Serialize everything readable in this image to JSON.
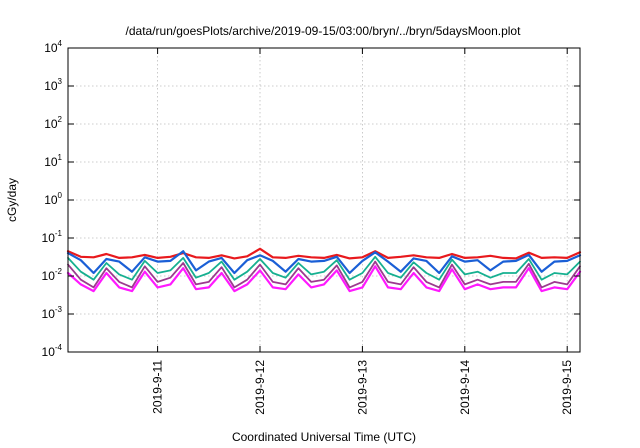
{
  "chart_data": {
    "type": "line",
    "title": "/data/run/goesPlots/archive/2019-09-15/03:00/bryn/../bryn/5daysMoon.plot",
    "xlabel": "Coordinated Universal Time (UTC)",
    "ylabel": "cGy/day",
    "yscale": "log",
    "ylim": [
      0.0001,
      10000
    ],
    "yticks": [
      {
        "base": "10",
        "exp": "4",
        "value": 10000
      },
      {
        "base": "10",
        "exp": "3",
        "value": 1000
      },
      {
        "base": "10",
        "exp": "2",
        "value": 100
      },
      {
        "base": "10",
        "exp": "1",
        "value": 10
      },
      {
        "base": "10",
        "exp": "0",
        "value": 1
      },
      {
        "base": "10",
        "exp": "-1",
        "value": 0.1
      },
      {
        "base": "10",
        "exp": "-2",
        "value": 0.01
      },
      {
        "base": "10",
        "exp": "-3",
        "value": 0.001
      },
      {
        "base": "10",
        "exp": "-4",
        "value": 0.0001
      }
    ],
    "xlim": [
      "2019-09-10T03:00",
      "2019-09-15T03:00"
    ],
    "xticks": [
      {
        "label": "2019-9-11",
        "value": "2019-09-11T00:00"
      },
      {
        "label": "2019-9-12",
        "value": "2019-09-12T00:00"
      },
      {
        "label": "2019-9-13",
        "value": "2019-09-13T00:00"
      },
      {
        "label": "2019-9-14",
        "value": "2019-09-14T00:00"
      },
      {
        "label": "2019-9-15",
        "value": "2019-09-15T00:00"
      }
    ],
    "grid": true,
    "legend": "none",
    "x": [
      "2019-09-10T03:00",
      "2019-09-10T06:00",
      "2019-09-10T09:00",
      "2019-09-10T12:00",
      "2019-09-10T15:00",
      "2019-09-10T18:00",
      "2019-09-10T21:00",
      "2019-09-11T00:00",
      "2019-09-11T03:00",
      "2019-09-11T06:00",
      "2019-09-11T09:00",
      "2019-09-11T12:00",
      "2019-09-11T15:00",
      "2019-09-11T18:00",
      "2019-09-11T21:00",
      "2019-09-12T00:00",
      "2019-09-12T03:00",
      "2019-09-12T06:00",
      "2019-09-12T09:00",
      "2019-09-12T12:00",
      "2019-09-12T15:00",
      "2019-09-12T18:00",
      "2019-09-12T21:00",
      "2019-09-13T00:00",
      "2019-09-13T03:00",
      "2019-09-13T06:00",
      "2019-09-13T09:00",
      "2019-09-13T12:00",
      "2019-09-13T15:00",
      "2019-09-13T18:00",
      "2019-09-13T21:00",
      "2019-09-14T00:00",
      "2019-09-14T03:00",
      "2019-09-14T06:00",
      "2019-09-14T09:00",
      "2019-09-14T12:00",
      "2019-09-14T15:00",
      "2019-09-14T18:00",
      "2019-09-14T21:00",
      "2019-09-15T00:00",
      "2019-09-15T03:00"
    ],
    "series": [
      {
        "color": "#e8191d",
        "width": 2.2,
        "values": [
          0.045,
          0.032,
          0.031,
          0.038,
          0.03,
          0.031,
          0.036,
          0.03,
          0.032,
          0.04,
          0.031,
          0.03,
          0.035,
          0.029,
          0.033,
          0.052,
          0.031,
          0.03,
          0.034,
          0.031,
          0.03,
          0.036,
          0.029,
          0.031,
          0.045,
          0.03,
          0.032,
          0.035,
          0.031,
          0.03,
          0.038,
          0.03,
          0.031,
          0.034,
          0.03,
          0.029,
          0.041,
          0.03,
          0.031,
          0.03,
          0.042
        ]
      },
      {
        "color": "#1a5fd6",
        "width": 2.2,
        "values": [
          0.04,
          0.026,
          0.012,
          0.028,
          0.024,
          0.013,
          0.031,
          0.024,
          0.025,
          0.045,
          0.014,
          0.024,
          0.03,
          0.012,
          0.026,
          0.035,
          0.025,
          0.013,
          0.028,
          0.024,
          0.025,
          0.032,
          0.012,
          0.025,
          0.042,
          0.024,
          0.013,
          0.029,
          0.025,
          0.012,
          0.033,
          0.024,
          0.026,
          0.014,
          0.024,
          0.025,
          0.036,
          0.013,
          0.024,
          0.025,
          0.035
        ]
      },
      {
        "color": "#16b090",
        "width": 1.8,
        "values": [
          0.03,
          0.013,
          0.008,
          0.022,
          0.011,
          0.008,
          0.025,
          0.012,
          0.014,
          0.03,
          0.009,
          0.012,
          0.024,
          0.008,
          0.013,
          0.028,
          0.012,
          0.009,
          0.022,
          0.011,
          0.013,
          0.026,
          0.008,
          0.012,
          0.032,
          0.012,
          0.009,
          0.023,
          0.012,
          0.008,
          0.027,
          0.011,
          0.013,
          0.009,
          0.012,
          0.012,
          0.028,
          0.008,
          0.012,
          0.011,
          0.024
        ]
      },
      {
        "color": "#9c3a8e",
        "width": 1.8,
        "values": [
          0.02,
          0.008,
          0.005,
          0.016,
          0.007,
          0.005,
          0.018,
          0.007,
          0.009,
          0.022,
          0.006,
          0.007,
          0.017,
          0.005,
          0.008,
          0.02,
          0.007,
          0.006,
          0.016,
          0.007,
          0.008,
          0.019,
          0.005,
          0.007,
          0.024,
          0.007,
          0.006,
          0.017,
          0.007,
          0.005,
          0.02,
          0.006,
          0.008,
          0.006,
          0.007,
          0.007,
          0.021,
          0.005,
          0.007,
          0.006,
          0.018
        ]
      },
      {
        "color": "#ff19ff",
        "width": 2.2,
        "values": [
          0.012,
          0.006,
          0.004,
          0.012,
          0.005,
          0.004,
          0.013,
          0.005,
          0.006,
          0.016,
          0.0045,
          0.005,
          0.012,
          0.004,
          0.006,
          0.014,
          0.005,
          0.0045,
          0.011,
          0.005,
          0.006,
          0.014,
          0.004,
          0.005,
          0.018,
          0.005,
          0.0045,
          0.012,
          0.005,
          0.004,
          0.015,
          0.0045,
          0.006,
          0.0045,
          0.005,
          0.005,
          0.016,
          0.004,
          0.005,
          0.0045,
          0.013
        ]
      }
    ]
  }
}
